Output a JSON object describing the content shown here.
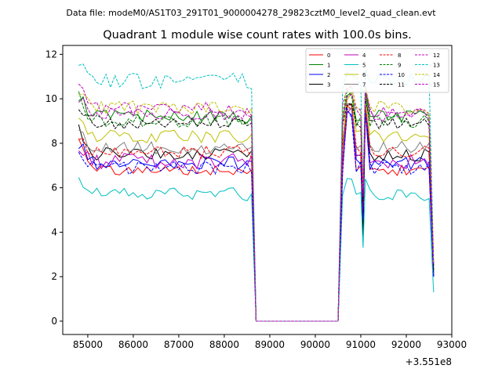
{
  "header": {
    "file_label": "Data file: modeM0/AS1T03_291T01_9000004278_29823cztM0_level2_quad_clean.evt"
  },
  "chart_data": {
    "type": "line",
    "title": "Quadrant 1 module wise count rates with 100.0s bins.",
    "xlabel": "",
    "ylabel": "",
    "x_offset_label": "+3.551e8",
    "xlim": [
      84450,
      93000
    ],
    "ylim": [
      -0.6,
      12.4
    ],
    "x_ticks": [
      85000,
      86000,
      87000,
      88000,
      89000,
      90000,
      91000,
      92000,
      93000
    ],
    "x_tick_labels": [
      "85000",
      "86000",
      "87000",
      "88000",
      "89000",
      "90000",
      "91000",
      "92000",
      "93000"
    ],
    "y_ticks": [
      0,
      2,
      4,
      6,
      8,
      10,
      12
    ],
    "y_tick_labels": [
      "0",
      "2",
      "4",
      "6",
      "8",
      "10",
      "12"
    ],
    "legend_position": "top-right",
    "segments": {
      "seg1_x": [
        84800,
        88600
      ],
      "gap_x": [
        88700,
        90500
      ],
      "seg2_x": [
        90600,
        91000
      ],
      "seg3_x": [
        91100,
        92500
      ],
      "end_x": 92600,
      "bin": 100
    },
    "series": [
      {
        "name": "0",
        "color": "#ff0000",
        "dash": "solid",
        "level": 6.8,
        "amp": 0.25,
        "high": 8.2,
        "low": 4.5,
        "peak": 9.8,
        "end": 2.2
      },
      {
        "name": "1",
        "color": "#008000",
        "dash": "solid",
        "level": 9.2,
        "amp": 0.3,
        "high": 10.2,
        "low": 5.6,
        "peak": 10.6,
        "end": 2.5
      },
      {
        "name": "2",
        "color": "#0000ff",
        "dash": "solid",
        "level": 7.1,
        "amp": 0.3,
        "high": 8.0,
        "low": 4.3,
        "peak": 9.6,
        "end": 2.0
      },
      {
        "name": "3",
        "color": "#000000",
        "dash": "solid",
        "level": 7.5,
        "amp": 0.3,
        "high": 8.6,
        "low": 3.8,
        "peak": 9.9,
        "end": 2.1
      },
      {
        "name": "4",
        "color": "#bf00bf",
        "dash": "solid",
        "level": 7.2,
        "amp": 0.35,
        "high": 7.8,
        "low": 4.9,
        "peak": 9.7,
        "end": 2.0
      },
      {
        "name": "5",
        "color": "#00bfbf",
        "dash": "solid",
        "level": 5.7,
        "amp": 0.3,
        "high": 6.5,
        "low": 3.3,
        "peak": 6.6,
        "end": 1.3
      },
      {
        "name": "6",
        "color": "#bfbf00",
        "dash": "solid",
        "level": 8.3,
        "amp": 0.3,
        "high": 9.1,
        "low": 5.0,
        "peak": 10.4,
        "end": 2.3
      },
      {
        "name": "7",
        "color": "#808080",
        "dash": "solid",
        "level": 7.8,
        "amp": 0.3,
        "high": 8.7,
        "low": 5.0,
        "peak": 10.0,
        "end": 2.2
      },
      {
        "name": "8",
        "color": "#ff0000",
        "dash": "dashed",
        "level": 7.6,
        "amp": 0.3,
        "high": 8.3,
        "low": 4.8,
        "peak": 9.9,
        "end": 2.2
      },
      {
        "name": "9",
        "color": "#008000",
        "dash": "dashed",
        "level": 9.0,
        "amp": 0.3,
        "high": 10.1,
        "low": 5.7,
        "peak": 10.5,
        "end": 2.4
      },
      {
        "name": "10",
        "color": "#0000ff",
        "dash": "dashed",
        "level": 6.9,
        "amp": 0.3,
        "high": 7.6,
        "low": 4.6,
        "peak": 9.6,
        "end": 2.0
      },
      {
        "name": "11",
        "color": "#000000",
        "dash": "dashed",
        "level": 8.9,
        "amp": 0.25,
        "high": 9.7,
        "low": 5.4,
        "peak": 10.2,
        "end": 2.3
      },
      {
        "name": "12",
        "color": "#bf00bf",
        "dash": "dashed",
        "level": 9.5,
        "amp": 0.35,
        "high": 10.8,
        "low": 5.8,
        "peak": 10.8,
        "end": 2.6
      },
      {
        "name": "13",
        "color": "#00bfbf",
        "dash": "dashed",
        "level": 10.8,
        "amp": 0.35,
        "high": 11.7,
        "low": 6.0,
        "peak": 11.5,
        "end": 2.8
      },
      {
        "name": "14",
        "color": "#bfbf00",
        "dash": "dashed",
        "level": 9.6,
        "amp": 0.3,
        "high": 10.3,
        "low": 5.9,
        "peak": 10.7,
        "end": 2.6
      },
      {
        "name": "15",
        "color": "#bf00bf",
        "dash": "dashed",
        "level": 9.3,
        "amp": 0.3,
        "high": 10.0,
        "low": 5.6,
        "peak": 10.5,
        "end": 2.5
      }
    ]
  }
}
